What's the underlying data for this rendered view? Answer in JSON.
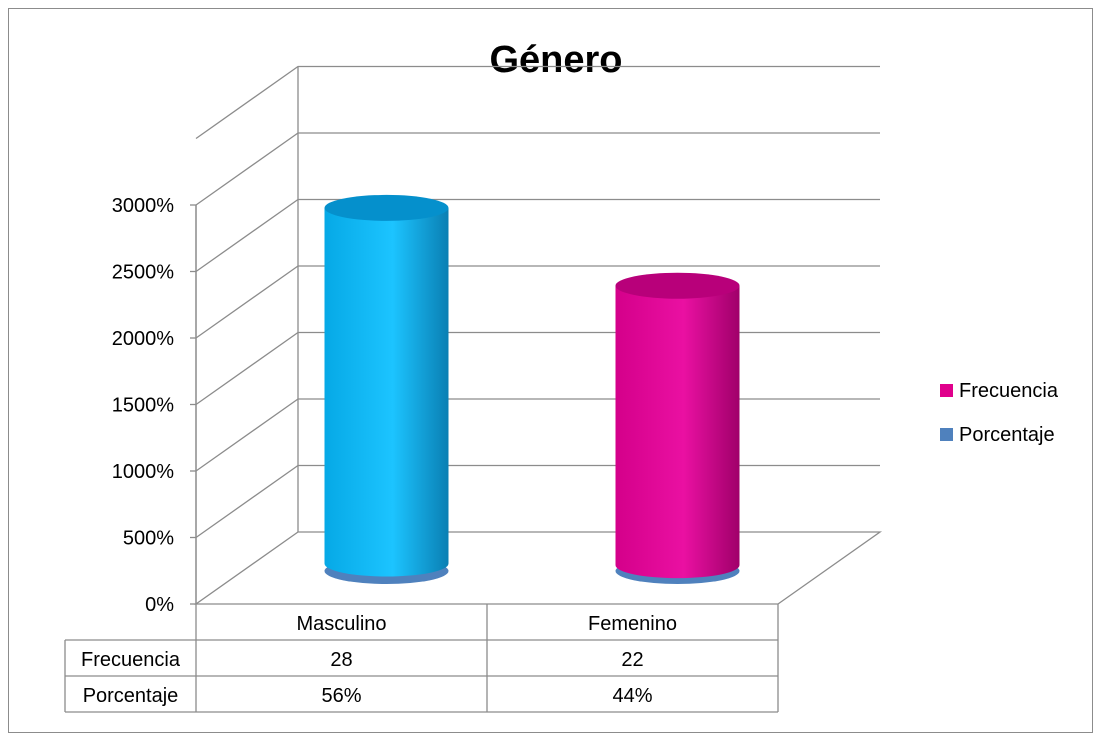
{
  "chart_data": {
    "type": "bar",
    "title": "Género",
    "categories": [
      "Masculino",
      "Femenino"
    ],
    "series": [
      {
        "name": "Frecuencia",
        "values": [
          28,
          22
        ],
        "display": [
          "28",
          "22"
        ],
        "color": "#E0008C",
        "plotted_color": [
          "#00B0F0",
          "#E0008C"
        ]
      },
      {
        "name": "Porcentaje",
        "values": [
          0.56,
          0.44
        ],
        "display": [
          "56%",
          "44%"
        ],
        "color": "#4F81BD"
      }
    ],
    "y_ticks": [
      "0%",
      "500%",
      "1000%",
      "1500%",
      "2000%",
      "2500%",
      "3000%"
    ],
    "ylim": [
      0,
      30
    ],
    "legend_position": "right",
    "grid": true,
    "data_table": true,
    "three_d": true
  }
}
